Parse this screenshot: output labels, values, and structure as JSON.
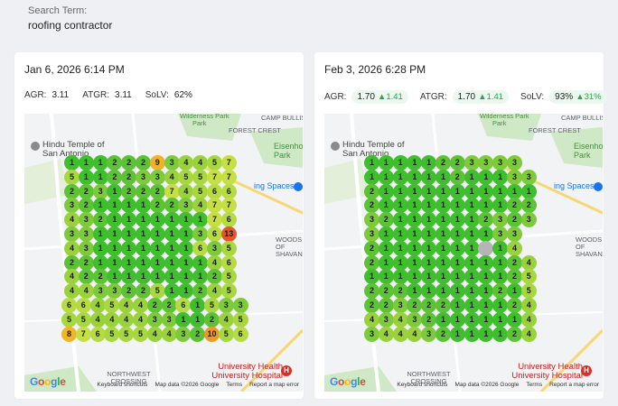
{
  "search": {
    "label": "Search Term:",
    "value": "roofing contractor"
  },
  "colors": {
    "c1": "#3fbf2e",
    "c2": "#5cc434",
    "c3": "#7dcb3a",
    "c4": "#9ad23c",
    "c5": "#a8d840",
    "c6": "#b6dc42",
    "c7": "#c6e044",
    "c8": "#f2b524",
    "c9": "#f0b321",
    "c10": "#ef9a1d",
    "c13": "#e8532a",
    "none": "#b5b5b5"
  },
  "map_labels": {
    "wilderness_park": "Wilderness Park",
    "park": "Park",
    "camp_bullis": "CAMP BULLIS",
    "forest_crest": "FOREST CREST",
    "hindu_temple": "Hindu Temple of San Antonio",
    "eisenhower_park": "Eisenhower Park",
    "spaces": "ing Spaces",
    "woods_of_shavano": "WOODS OF SHAVANO",
    "northwest_crossing": "NORTHWEST CROSSING",
    "university_health": "University Health University Hospital",
    "google": "Google",
    "keyboard": "Keyboard shortcuts",
    "map_data": "Map data ©2026 Google",
    "terms": "Terms",
    "report": "Report a map error"
  },
  "left": {
    "date": "Jan 6, 2026 6:14 PM",
    "agr_label": "AGR:",
    "agr": "3.11",
    "atgr_label": "ATGR:",
    "atgr": "3.11",
    "solv_label": "SoLV:",
    "solv": "62%",
    "grid": [
      [
        1,
        1,
        1,
        2,
        2,
        2,
        9,
        3,
        4,
        4,
        5,
        7
      ],
      [
        5,
        1,
        1,
        2,
        2,
        3,
        3,
        4,
        5,
        5,
        7,
        7
      ],
      [
        2,
        2,
        3,
        1,
        2,
        2,
        2,
        7,
        4,
        5,
        6,
        6
      ],
      [
        3,
        2,
        1,
        1,
        1,
        1,
        2,
        2,
        3,
        4,
        7,
        7
      ],
      [
        4,
        3,
        2,
        1,
        1,
        1,
        1,
        1,
        1,
        1,
        7,
        6
      ],
      [
        3,
        3,
        1,
        1,
        1,
        1,
        1,
        1,
        1,
        3,
        6,
        13
      ],
      [
        4,
        3,
        1,
        1,
        1,
        1,
        1,
        1,
        1,
        6,
        3,
        5
      ],
      [
        2,
        2,
        1,
        1,
        1,
        1,
        1,
        1,
        1,
        1,
        4,
        6
      ],
      [
        4,
        2,
        2,
        1,
        1,
        1,
        1,
        1,
        1,
        1,
        2,
        5
      ],
      [
        4,
        4,
        3,
        3,
        2,
        2,
        5,
        1,
        1,
        2,
        4,
        5
      ],
      [
        6,
        6,
        4,
        5,
        4,
        4,
        2,
        2,
        6,
        1,
        5,
        3,
        3
      ],
      [
        5,
        5,
        4,
        4,
        4,
        4,
        3,
        3,
        1,
        1,
        2,
        4,
        5
      ],
      [
        8,
        7,
        6,
        5,
        5,
        5,
        4,
        4,
        3,
        2,
        10,
        5,
        6
      ]
    ]
  },
  "right": {
    "date": "Feb 3, 2026 6:28 PM",
    "agr_label": "AGR:",
    "agr": "1.70",
    "agr_delta": "1.41",
    "atgr_label": "ATGR:",
    "atgr": "1.70",
    "atgr_delta": "1.41",
    "solv_label": "SoLV:",
    "solv": "93%",
    "solv_delta": "31%",
    "grid": [
      [
        1,
        1,
        1,
        1,
        1,
        2,
        2,
        3,
        3,
        3,
        3
      ],
      [
        1,
        1,
        1,
        1,
        1,
        1,
        2,
        1,
        1,
        1,
        3,
        3
      ],
      [
        2,
        1,
        1,
        1,
        1,
        1,
        1,
        1,
        1,
        1,
        1,
        1
      ],
      [
        2,
        1,
        1,
        1,
        1,
        1,
        1,
        1,
        1,
        1,
        2,
        2
      ],
      [
        3,
        2,
        1,
        1,
        1,
        1,
        1,
        1,
        2,
        3,
        2,
        3
      ],
      [
        3,
        1,
        1,
        1,
        1,
        1,
        1,
        1,
        1,
        3,
        3
      ],
      [
        2,
        1,
        1,
        1,
        1,
        1,
        1,
        1,
        0,
        1,
        4
      ],
      [
        2,
        1,
        1,
        1,
        1,
        1,
        1,
        1,
        1,
        1,
        2,
        4
      ],
      [
        1,
        1,
        1,
        1,
        1,
        1,
        1,
        1,
        1,
        1,
        2,
        5
      ],
      [
        2,
        2,
        2,
        1,
        1,
        1,
        1,
        1,
        1,
        2,
        1,
        5
      ],
      [
        2,
        2,
        3,
        2,
        2,
        2,
        1,
        1,
        1,
        1,
        2,
        4
      ],
      [
        4,
        3,
        4,
        3,
        2,
        1,
        1,
        1,
        1,
        1,
        1,
        4
      ],
      [
        3,
        4,
        4,
        4,
        3,
        2,
        1,
        1,
        1,
        1,
        2,
        4
      ]
    ]
  },
  "arrow": "▲"
}
